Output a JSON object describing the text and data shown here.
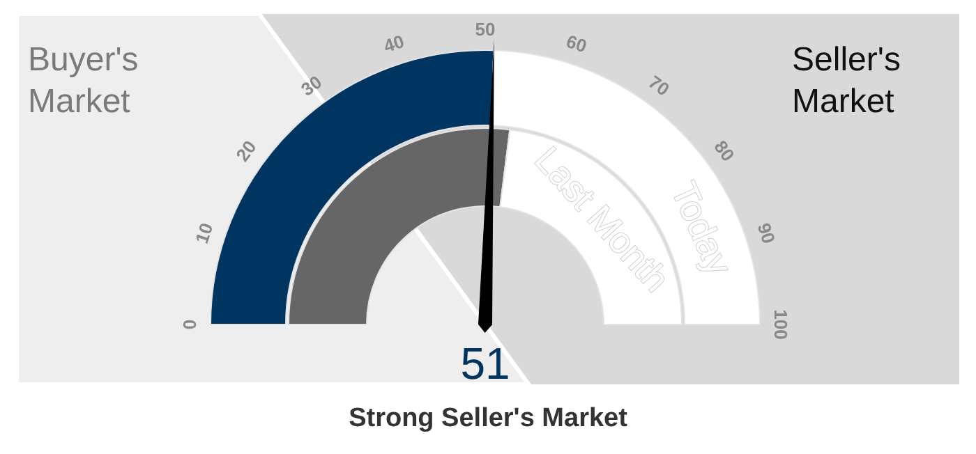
{
  "chart_data": {
    "type": "donut",
    "title": "Strong Seller's Market",
    "categories": [
      null,
      null
    ],
    "series": [
      {
        "name": "Today",
        "values": [
          51,
          49
        ],
        "colors": [
          "#003461",
          "#ffffff"
        ]
      },
      {
        "name": "Last Month",
        "values": [
          54,
          46
        ],
        "colors": [
          "#666666",
          "#ffffff"
        ]
      }
    ],
    "annotations": [
      "0",
      "10",
      "20",
      "30",
      "40",
      "50",
      "60",
      "70",
      "80",
      "90",
      "100",
      "Buyer's Market",
      "Seller's Market",
      "51"
    ]
  }
}
